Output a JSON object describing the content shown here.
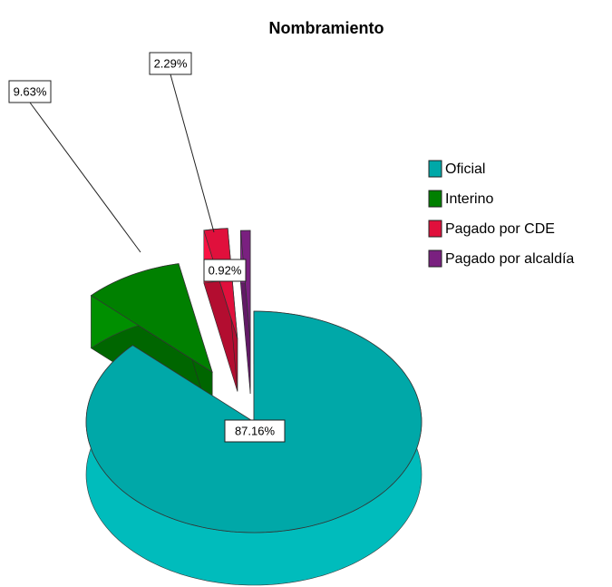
{
  "chart_data": {
    "type": "pie3d",
    "title": "Nombramiento",
    "categories": [
      "Oficial",
      "Interino",
      "Pagado por CDE",
      "Pagado por alcaldía"
    ],
    "values": [
      87.16,
      9.63,
      2.29,
      0.92
    ],
    "value_labels": [
      "87.16%",
      "9.63%",
      "2.29%",
      "0.92%"
    ],
    "colors": [
      "#00a8a8",
      "#008000",
      "#e0103c",
      "#7a2080"
    ],
    "legend": "right"
  }
}
